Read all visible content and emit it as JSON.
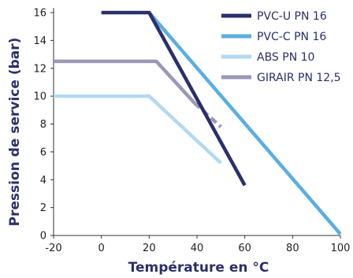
{
  "chart_data": {
    "type": "line",
    "xlabel": "Température en °C",
    "ylabel": "Pression de service (bar)",
    "xlim": [
      -20,
      100
    ],
    "ylim": [
      0,
      16
    ],
    "x_ticks": [
      -20,
      0,
      20,
      40,
      60,
      80,
      100
    ],
    "y_ticks": [
      0,
      2,
      4,
      6,
      8,
      10,
      12,
      14,
      16
    ],
    "x_tick_labels": [
      "-20",
      "0",
      "20",
      "40",
      "60",
      "80",
      "100"
    ],
    "y_tick_labels": [
      "0",
      "2",
      "4",
      "6",
      "8",
      "10",
      "12",
      "14",
      "16"
    ],
    "grid": false,
    "legend_position": "top-right",
    "series": [
      {
        "name": "PVC-U PN 16",
        "color": "#2b2f6b",
        "dashed_from_index": null,
        "points": [
          [
            0,
            16
          ],
          [
            20,
            16
          ],
          [
            60,
            3.6
          ]
        ]
      },
      {
        "name": "PVC-C PN 16",
        "color": "#5aaee3",
        "dashed_from_index": null,
        "points": [
          [
            20,
            16
          ],
          [
            100,
            0.1
          ]
        ]
      },
      {
        "name": "ABS PN 10",
        "color": "#b3d9f2",
        "dashed_from_index": null,
        "points": [
          [
            -20,
            10
          ],
          [
            20,
            10
          ],
          [
            50,
            5.2
          ]
        ]
      },
      {
        "name": "GIRAIR PN 12,5",
        "color": "#9a97b8",
        "dashed_from_index": 2,
        "points": [
          [
            -20,
            12.5
          ],
          [
            23,
            12.5
          ],
          [
            39,
            9.5
          ],
          [
            50,
            7.8
          ]
        ]
      }
    ]
  }
}
